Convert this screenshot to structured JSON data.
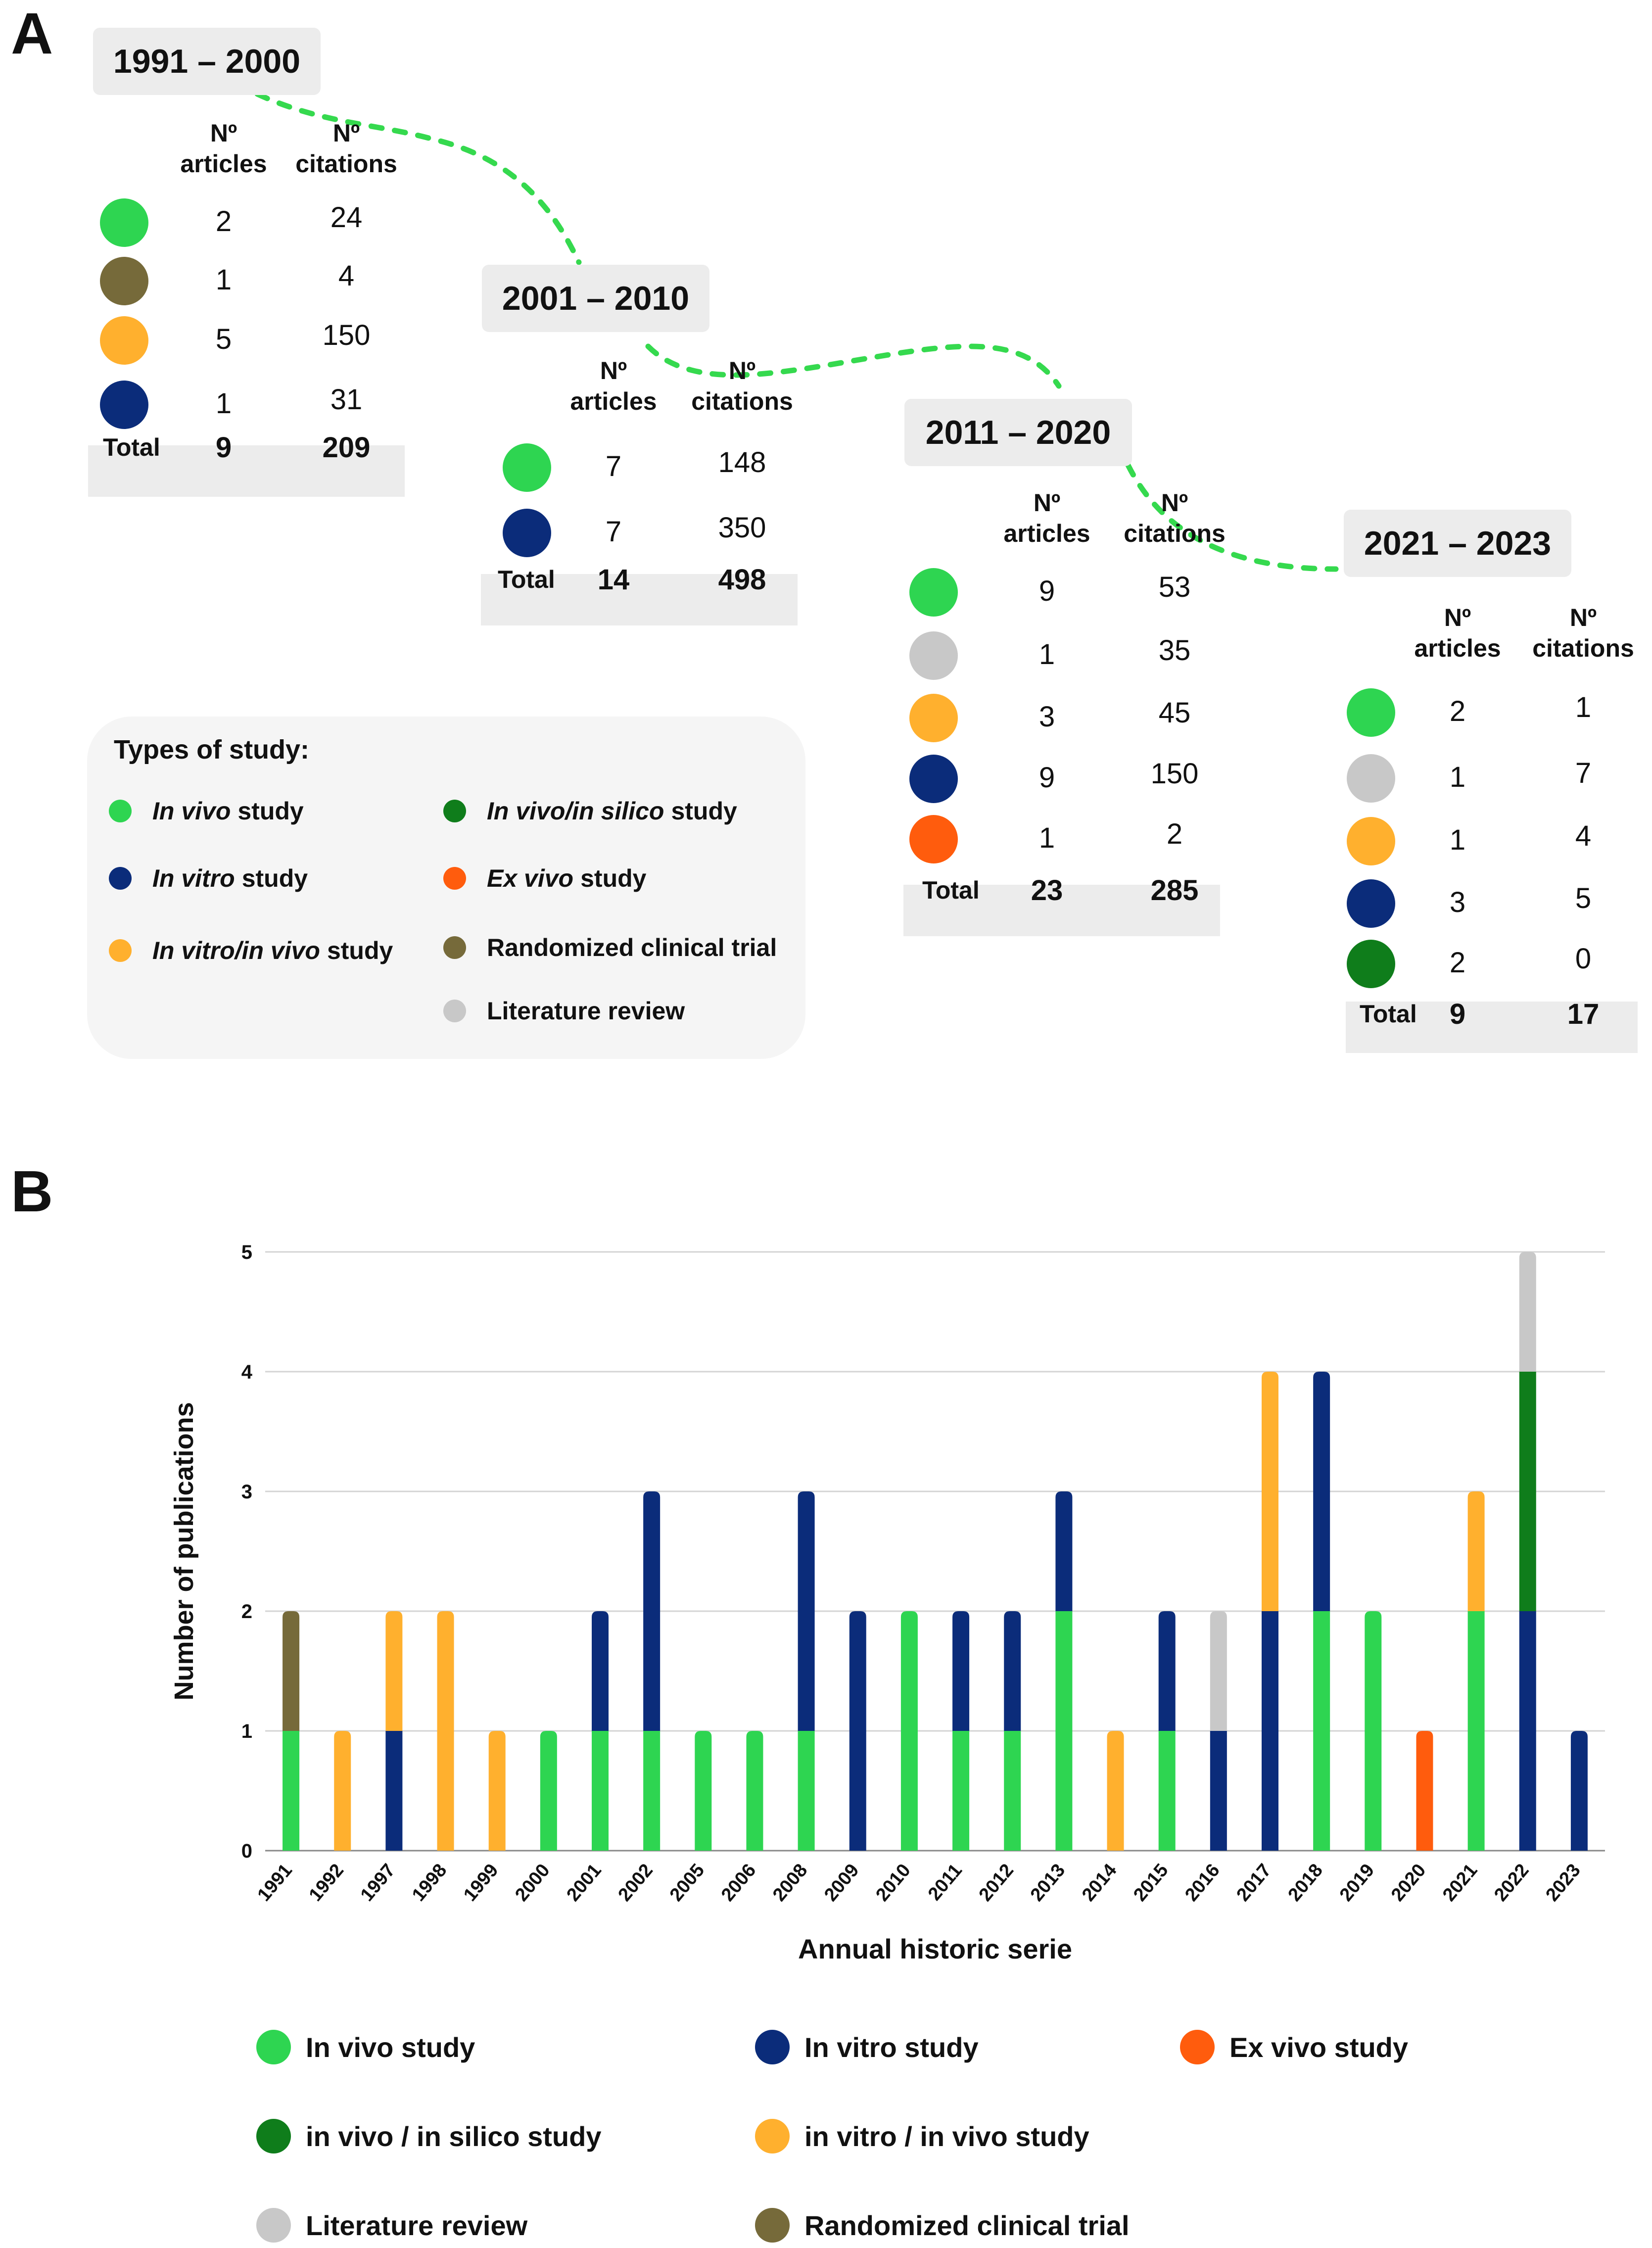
{
  "panel_a_label": "A",
  "panel_b_label": "B",
  "colors": {
    "in_vivo": "#2ed551",
    "in_vitro": "#0b2c7a",
    "ex_vivo": "#ff5c0d",
    "in_vivo_in_silico": "#0f7d1b",
    "in_vitro_in_vivo": "#ffb02e",
    "literature_review": "#c8c8c8",
    "randomized_clinical_trial": "#766a3a",
    "connector": "#35d94e",
    "grid": "#d4d4d4"
  },
  "periods": [
    {
      "label": "1991 – 2000",
      "col_articles": [
        "Nº",
        "articles"
      ],
      "col_citations": [
        "Nº",
        "citations"
      ],
      "rows": [
        {
          "type": "in_vivo",
          "articles": "2",
          "citations": "24"
        },
        {
          "type": "randomized_clinical_trial",
          "articles": "1",
          "citations": "4"
        },
        {
          "type": "in_vitro_in_vivo",
          "articles": "5",
          "citations": "150"
        },
        {
          "type": "in_vitro",
          "articles": "1",
          "citations": "31"
        }
      ],
      "total_label": "Total",
      "total_articles": "9",
      "total_citations": "209"
    },
    {
      "label": "2001 – 2010",
      "col_articles": [
        "Nº",
        "articles"
      ],
      "col_citations": [
        "Nº",
        "citations"
      ],
      "rows": [
        {
          "type": "in_vivo",
          "articles": "7",
          "citations": "148"
        },
        {
          "type": "in_vitro",
          "articles": "7",
          "citations": "350"
        }
      ],
      "total_label": "Total",
      "total_articles": "14",
      "total_citations": "498"
    },
    {
      "label": "2011 – 2020",
      "col_articles": [
        "Nº",
        "articles"
      ],
      "col_citations": [
        "Nº",
        "citations"
      ],
      "rows": [
        {
          "type": "in_vivo",
          "articles": "9",
          "citations": "53"
        },
        {
          "type": "literature_review",
          "articles": "1",
          "citations": "35"
        },
        {
          "type": "in_vitro_in_vivo",
          "articles": "3",
          "citations": "45"
        },
        {
          "type": "in_vitro",
          "articles": "9",
          "citations": "150"
        },
        {
          "type": "ex_vivo",
          "articles": "1",
          "citations": "2"
        }
      ],
      "total_label": "Total",
      "total_articles": "23",
      "total_citations": "285"
    },
    {
      "label": "2021 – 2023",
      "col_articles": [
        "Nº",
        "articles"
      ],
      "col_citations": [
        "Nº",
        "citations"
      ],
      "rows": [
        {
          "type": "in_vivo",
          "articles": "2",
          "citations": "1"
        },
        {
          "type": "literature_review",
          "articles": "1",
          "citations": "7"
        },
        {
          "type": "in_vitro_in_vivo",
          "articles": "1",
          "citations": "4"
        },
        {
          "type": "in_vitro",
          "articles": "3",
          "citations": "5"
        },
        {
          "type": "in_vivo_in_silico",
          "articles": "2",
          "citations": "0"
        }
      ],
      "total_label": "Total",
      "total_articles": "9",
      "total_citations": "17"
    }
  ],
  "types_of_study": {
    "title": "Types of study:",
    "items": [
      {
        "type": "in_vivo",
        "italic": "In vivo",
        "rest": "study"
      },
      {
        "type": "in_vivo_in_silico",
        "italic": "In vivo/in silico",
        "rest": "study"
      },
      {
        "type": "in_vitro",
        "italic": "In vitro",
        "rest": "study"
      },
      {
        "type": "ex_vivo",
        "italic": "Ex vivo",
        "rest": "study"
      },
      {
        "type": "in_vitro_in_vivo",
        "italic": "In vitro/in vivo",
        "rest": "study"
      },
      {
        "type": "randomized_clinical_trial",
        "italic": "",
        "rest": "Randomized clinical trial"
      },
      {
        "type": "literature_review",
        "italic": "",
        "rest": "Literature review"
      }
    ]
  },
  "chart_data": {
    "type": "bar",
    "stacked": true,
    "title": "",
    "xlabel": "Annual historic serie",
    "ylabel": "Number of publications",
    "ylim": [
      0,
      5
    ],
    "yticks": [
      0,
      1,
      2,
      3,
      4,
      5
    ],
    "grid": true,
    "categories": [
      "1991",
      "1992",
      "1997",
      "1998",
      "1999",
      "2000",
      "2001",
      "2002",
      "2005",
      "2006",
      "2008",
      "2009",
      "2010",
      "2011",
      "2012",
      "2013",
      "2014",
      "2015",
      "2016",
      "2017",
      "2018",
      "2019",
      "2020",
      "2021",
      "2022",
      "2023"
    ],
    "series": [
      {
        "name": "In vivo study",
        "key": "in_vivo",
        "values": [
          1,
          0,
          0,
          0,
          0,
          1,
          1,
          1,
          1,
          1,
          1,
          0,
          2,
          1,
          1,
          2,
          0,
          1,
          0,
          0,
          2,
          2,
          0,
          2,
          0,
          0
        ]
      },
      {
        "name": "In vitro study",
        "key": "in_vitro",
        "values": [
          0,
          0,
          1,
          0,
          0,
          0,
          1,
          2,
          0,
          0,
          2,
          2,
          0,
          1,
          1,
          1,
          0,
          1,
          1,
          2,
          2,
          0,
          0,
          0,
          2,
          1
        ]
      },
      {
        "name": "Ex vivo study",
        "key": "ex_vivo",
        "values": [
          0,
          0,
          0,
          0,
          0,
          0,
          0,
          0,
          0,
          0,
          0,
          0,
          0,
          0,
          0,
          0,
          0,
          0,
          0,
          0,
          0,
          0,
          1,
          0,
          0,
          0
        ]
      },
      {
        "name": "in vivo / in silico study",
        "key": "in_vivo_in_silico",
        "values": [
          0,
          0,
          0,
          0,
          0,
          0,
          0,
          0,
          0,
          0,
          0,
          0,
          0,
          0,
          0,
          0,
          0,
          0,
          0,
          0,
          0,
          0,
          0,
          0,
          2,
          0
        ]
      },
      {
        "name": "in vitro / in vivo study",
        "key": "in_vitro_in_vivo",
        "values": [
          0,
          1,
          1,
          2,
          1,
          0,
          0,
          0,
          0,
          0,
          0,
          0,
          0,
          0,
          0,
          0,
          1,
          0,
          0,
          2,
          0,
          0,
          0,
          1,
          0,
          0
        ]
      },
      {
        "name": "Literature review",
        "key": "literature_review",
        "values": [
          0,
          0,
          0,
          0,
          0,
          0,
          0,
          0,
          0,
          0,
          0,
          0,
          0,
          0,
          0,
          0,
          0,
          0,
          1,
          0,
          0,
          0,
          0,
          0,
          1,
          0
        ]
      },
      {
        "name": "Randomized clinical trial",
        "key": "randomized_clinical_trial",
        "values": [
          1,
          0,
          0,
          0,
          0,
          0,
          0,
          0,
          0,
          0,
          0,
          0,
          0,
          0,
          0,
          0,
          0,
          0,
          0,
          0,
          0,
          0,
          0,
          0,
          0,
          0
        ]
      }
    ],
    "stack_order": [
      "in_vivo",
      "in_vitro",
      "ex_vivo",
      "in_vivo_in_silico",
      "in_vitro_in_vivo",
      "literature_review",
      "randomized_clinical_trial"
    ],
    "legend_order": [
      "in_vivo",
      "in_vitro",
      "ex_vivo",
      "in_vivo_in_silico",
      "in_vitro_in_vivo",
      "literature_review",
      "randomized_clinical_trial"
    ],
    "legend_position": "bottom"
  }
}
